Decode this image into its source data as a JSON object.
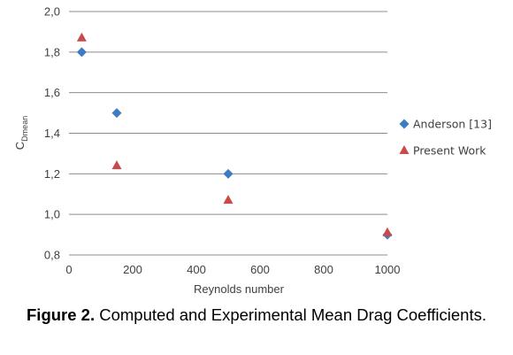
{
  "chart_data": {
    "type": "scatter",
    "xlabel": "Reynolds number",
    "ylabel_main": "C",
    "ylabel_sub": "Dmean",
    "xlim": [
      0,
      1000
    ],
    "ylim": [
      0.8,
      2.0
    ],
    "x_ticks": [
      "0",
      "200",
      "400",
      "600",
      "800",
      "1000"
    ],
    "y_ticks": [
      "0,8",
      "1,0",
      "1,2",
      "1,4",
      "1,6",
      "1,8",
      "2,0"
    ],
    "grid": "horizontal",
    "legend_position": "right",
    "series": [
      {
        "name": "Anderson [13]",
        "marker": "diamond",
        "color": "#3d7cc2",
        "points": [
          [
            40,
            1.8
          ],
          [
            150,
            1.5
          ],
          [
            500,
            1.2
          ],
          [
            1000,
            0.9
          ]
        ]
      },
      {
        "name": "Present Work",
        "marker": "triangle",
        "color": "#c84a4a",
        "points": [
          [
            40,
            1.87
          ],
          [
            150,
            1.24
          ],
          [
            500,
            1.07
          ],
          [
            1000,
            0.91
          ]
        ]
      }
    ]
  },
  "caption": {
    "label": "Figure 2.",
    "text": " Computed and Experimental Mean Drag Coefficients."
  }
}
